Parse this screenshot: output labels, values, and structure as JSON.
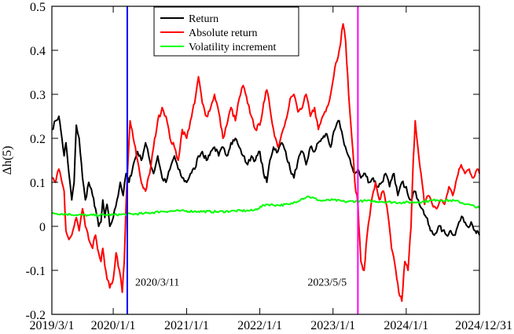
{
  "chart_data": {
    "type": "line",
    "ylabel": "Δh(5)",
    "xlabel": "",
    "title": "",
    "x_ticks": [
      "2019/3/1",
      "2020/1/1",
      "2021/1/1",
      "2022/1/1",
      "2023/1/1",
      "2024/1/1",
      "2024/12/31"
    ],
    "xlim": [
      "2019-03-01",
      "2024-12-31"
    ],
    "ylim": [
      -0.2,
      0.5
    ],
    "y_ticks": [
      "-0.2",
      "-0.1",
      "0",
      "0.1",
      "0.2",
      "0.3",
      "0.4",
      "0.5"
    ],
    "y_tick_values": [
      -0.2,
      -0.1,
      0,
      0.1,
      0.2,
      0.3,
      0.4,
      0.5
    ],
    "legend_position": "top-center",
    "grid": false,
    "series": [
      {
        "name": "Return",
        "color": "#000000",
        "points": [
          [
            "2019-03-01",
            0.22
          ],
          [
            "2019-03-20",
            0.24
          ],
          [
            "2019-04-05",
            0.25
          ],
          [
            "2019-04-20",
            0.2
          ],
          [
            "2019-05-01",
            0.16
          ],
          [
            "2019-05-10",
            0.19
          ],
          [
            "2019-05-25",
            0.12
          ],
          [
            "2019-06-08",
            0.06
          ],
          [
            "2019-06-20",
            0.1
          ],
          [
            "2019-07-01",
            0.23
          ],
          [
            "2019-07-15",
            0.2
          ],
          [
            "2019-08-01",
            0.11
          ],
          [
            "2019-08-15",
            0.06
          ],
          [
            "2019-09-01",
            0.1
          ],
          [
            "2019-09-20",
            0.07
          ],
          [
            "2019-10-05",
            0.04
          ],
          [
            "2019-10-20",
            0.0
          ],
          [
            "2019-11-01",
            0.01
          ],
          [
            "2019-11-10",
            0.06
          ],
          [
            "2019-11-20",
            0.02
          ],
          [
            "2019-12-01",
            0.05
          ],
          [
            "2019-12-15",
            0.0
          ],
          [
            "2020-01-01",
            0.02
          ],
          [
            "2020-01-20",
            0.06
          ],
          [
            "2020-02-05",
            0.1
          ],
          [
            "2020-02-20",
            0.07
          ],
          [
            "2020-03-05",
            0.12
          ],
          [
            "2020-03-20",
            0.1
          ],
          [
            "2020-04-10",
            0.14
          ],
          [
            "2020-05-01",
            0.17
          ],
          [
            "2020-05-20",
            0.15
          ],
          [
            "2020-06-10",
            0.19
          ],
          [
            "2020-07-01",
            0.15
          ],
          [
            "2020-07-20",
            0.12
          ],
          [
            "2020-08-10",
            0.16
          ],
          [
            "2020-09-01",
            0.11
          ],
          [
            "2020-09-20",
            0.1
          ],
          [
            "2020-10-10",
            0.13
          ],
          [
            "2020-11-01",
            0.16
          ],
          [
            "2020-11-20",
            0.13
          ],
          [
            "2020-12-10",
            0.11
          ],
          [
            "2021-01-01",
            0.1
          ],
          [
            "2021-01-20",
            0.12
          ],
          [
            "2021-02-10",
            0.13
          ],
          [
            "2021-03-01",
            0.16
          ],
          [
            "2021-03-20",
            0.17
          ],
          [
            "2021-04-10",
            0.15
          ],
          [
            "2021-05-01",
            0.17
          ],
          [
            "2021-05-20",
            0.18
          ],
          [
            "2021-06-10",
            0.16
          ],
          [
            "2021-07-01",
            0.18
          ],
          [
            "2021-07-20",
            0.16
          ],
          [
            "2021-08-10",
            0.19
          ],
          [
            "2021-09-01",
            0.2
          ],
          [
            "2021-09-20",
            0.18
          ],
          [
            "2021-10-10",
            0.16
          ],
          [
            "2021-11-01",
            0.14
          ],
          [
            "2021-11-20",
            0.16
          ],
          [
            "2021-12-10",
            0.15
          ],
          [
            "2022-01-01",
            0.17
          ],
          [
            "2022-01-20",
            0.12
          ],
          [
            "2022-02-05",
            0.1
          ],
          [
            "2022-02-20",
            0.15
          ],
          [
            "2022-03-10",
            0.18
          ],
          [
            "2022-04-01",
            0.17
          ],
          [
            "2022-04-20",
            0.19
          ],
          [
            "2022-05-10",
            0.17
          ],
          [
            "2022-06-01",
            0.13
          ],
          [
            "2022-06-20",
            0.11
          ],
          [
            "2022-07-10",
            0.15
          ],
          [
            "2022-08-01",
            0.17
          ],
          [
            "2022-08-20",
            0.14
          ],
          [
            "2022-09-10",
            0.18
          ],
          [
            "2022-10-01",
            0.17
          ],
          [
            "2022-10-20",
            0.19
          ],
          [
            "2022-11-10",
            0.2
          ],
          [
            "2022-12-01",
            0.21
          ],
          [
            "2022-12-20",
            0.18
          ],
          [
            "2023-01-10",
            0.22
          ],
          [
            "2023-02-01",
            0.24
          ],
          [
            "2023-02-20",
            0.2
          ],
          [
            "2023-03-10",
            0.17
          ],
          [
            "2023-04-01",
            0.14
          ],
          [
            "2023-04-20",
            0.12
          ],
          [
            "2023-05-05",
            0.13
          ],
          [
            "2023-05-20",
            0.11
          ],
          [
            "2023-06-10",
            0.12
          ],
          [
            "2023-07-01",
            0.1
          ],
          [
            "2023-07-20",
            0.11
          ],
          [
            "2023-08-10",
            0.09
          ],
          [
            "2023-09-01",
            0.1
          ],
          [
            "2023-09-20",
            0.12
          ],
          [
            "2023-10-10",
            0.09
          ],
          [
            "2023-11-01",
            0.12
          ],
          [
            "2023-11-20",
            0.07
          ],
          [
            "2023-12-10",
            0.1
          ],
          [
            "2024-01-01",
            0.09
          ],
          [
            "2024-01-20",
            0.06
          ],
          [
            "2024-02-10",
            0.08
          ],
          [
            "2024-03-01",
            0.06
          ],
          [
            "2024-03-20",
            0.04
          ],
          [
            "2024-04-10",
            0.02
          ],
          [
            "2024-05-01",
            -0.01
          ],
          [
            "2024-05-20",
            -0.02
          ],
          [
            "2024-06-10",
            0.0
          ],
          [
            "2024-07-01",
            -0.01
          ],
          [
            "2024-07-20",
            -0.02
          ],
          [
            "2024-08-10",
            -0.01
          ],
          [
            "2024-09-01",
            -0.02
          ],
          [
            "2024-09-20",
            0.01
          ],
          [
            "2024-10-10",
            0.02
          ],
          [
            "2024-11-01",
            0.0
          ],
          [
            "2024-11-20",
            0.01
          ],
          [
            "2024-12-10",
            -0.01
          ],
          [
            "2024-12-31",
            -0.02
          ]
        ]
      },
      {
        "name": "Absolute return",
        "color": "#ff0000",
        "points": [
          [
            "2019-03-01",
            0.11
          ],
          [
            "2019-03-20",
            0.1
          ],
          [
            "2019-04-05",
            0.13
          ],
          [
            "2019-04-20",
            0.1
          ],
          [
            "2019-05-01",
            0.08
          ],
          [
            "2019-05-10",
            -0.01
          ],
          [
            "2019-05-25",
            -0.03
          ],
          [
            "2019-06-08",
            -0.02
          ],
          [
            "2019-06-20",
            0.0
          ],
          [
            "2019-07-01",
            0.02
          ],
          [
            "2019-07-15",
            -0.01
          ],
          [
            "2019-08-01",
            0.04
          ],
          [
            "2019-08-15",
            0.0
          ],
          [
            "2019-09-01",
            -0.03
          ],
          [
            "2019-09-20",
            -0.05
          ],
          [
            "2019-10-05",
            -0.02
          ],
          [
            "2019-10-20",
            -0.06
          ],
          [
            "2019-11-01",
            -0.08
          ],
          [
            "2019-11-10",
            -0.05
          ],
          [
            "2019-11-20",
            -0.09
          ],
          [
            "2019-12-01",
            -0.12
          ],
          [
            "2019-12-15",
            -0.14
          ],
          [
            "2020-01-01",
            -0.12
          ],
          [
            "2020-01-15",
            -0.06
          ],
          [
            "2020-02-01",
            -0.1
          ],
          [
            "2020-02-15",
            -0.15
          ],
          [
            "2020-02-25",
            -0.08
          ],
          [
            "2020-03-05",
            0.05
          ],
          [
            "2020-03-15",
            0.15
          ],
          [
            "2020-03-25",
            0.24
          ],
          [
            "2020-04-10",
            0.2
          ],
          [
            "2020-05-01",
            0.15
          ],
          [
            "2020-05-20",
            0.1
          ],
          [
            "2020-06-10",
            0.08
          ],
          [
            "2020-07-01",
            0.12
          ],
          [
            "2020-07-20",
            0.18
          ],
          [
            "2020-08-10",
            0.24
          ],
          [
            "2020-09-01",
            0.27
          ],
          [
            "2020-09-20",
            0.25
          ],
          [
            "2020-10-10",
            0.2
          ],
          [
            "2020-11-01",
            0.18
          ],
          [
            "2020-11-20",
            0.15
          ],
          [
            "2020-12-10",
            0.22
          ],
          [
            "2021-01-01",
            0.2
          ],
          [
            "2021-01-20",
            0.24
          ],
          [
            "2021-02-10",
            0.28
          ],
          [
            "2021-03-01",
            0.34
          ],
          [
            "2021-03-20",
            0.28
          ],
          [
            "2021-04-10",
            0.25
          ],
          [
            "2021-05-01",
            0.27
          ],
          [
            "2021-05-20",
            0.3
          ],
          [
            "2021-06-10",
            0.26
          ],
          [
            "2021-07-01",
            0.2
          ],
          [
            "2021-07-20",
            0.23
          ],
          [
            "2021-08-10",
            0.27
          ],
          [
            "2021-09-01",
            0.24
          ],
          [
            "2021-09-20",
            0.29
          ],
          [
            "2021-10-10",
            0.32
          ],
          [
            "2021-11-01",
            0.28
          ],
          [
            "2021-11-20",
            0.25
          ],
          [
            "2021-12-10",
            0.22
          ],
          [
            "2022-01-01",
            0.23
          ],
          [
            "2022-01-20",
            0.28
          ],
          [
            "2022-02-05",
            0.31
          ],
          [
            "2022-02-20",
            0.27
          ],
          [
            "2022-03-10",
            0.22
          ],
          [
            "2022-04-01",
            0.18
          ],
          [
            "2022-04-20",
            0.21
          ],
          [
            "2022-05-10",
            0.24
          ],
          [
            "2022-06-01",
            0.29
          ],
          [
            "2022-06-20",
            0.3
          ],
          [
            "2022-07-10",
            0.26
          ],
          [
            "2022-08-01",
            0.27
          ],
          [
            "2022-08-20",
            0.3
          ],
          [
            "2022-09-10",
            0.25
          ],
          [
            "2022-10-01",
            0.27
          ],
          [
            "2022-10-20",
            0.22
          ],
          [
            "2022-11-10",
            0.25
          ],
          [
            "2022-12-01",
            0.27
          ],
          [
            "2022-12-20",
            0.3
          ],
          [
            "2023-01-10",
            0.36
          ],
          [
            "2023-02-01",
            0.4
          ],
          [
            "2023-02-20",
            0.46
          ],
          [
            "2023-03-05",
            0.42
          ],
          [
            "2023-03-20",
            0.3
          ],
          [
            "2023-04-05",
            0.2
          ],
          [
            "2023-04-20",
            0.1
          ],
          [
            "2023-05-05",
            0.05
          ],
          [
            "2023-05-20",
            -0.08
          ],
          [
            "2023-06-05",
            -0.1
          ],
          [
            "2023-06-20",
            -0.02
          ],
          [
            "2023-07-10",
            0.05
          ],
          [
            "2023-08-01",
            0.1
          ],
          [
            "2023-08-20",
            0.06
          ],
          [
            "2023-09-10",
            0.08
          ],
          [
            "2023-10-01",
            0.03
          ],
          [
            "2023-10-20",
            -0.05
          ],
          [
            "2023-11-10",
            -0.1
          ],
          [
            "2023-11-25",
            -0.15
          ],
          [
            "2023-12-10",
            -0.17
          ],
          [
            "2023-12-25",
            -0.08
          ],
          [
            "2024-01-10",
            -0.1
          ],
          [
            "2024-01-25",
            0.0
          ],
          [
            "2024-02-05",
            0.15
          ],
          [
            "2024-02-15",
            0.24
          ],
          [
            "2024-02-28",
            0.18
          ],
          [
            "2024-03-15",
            0.12
          ],
          [
            "2024-04-01",
            0.05
          ],
          [
            "2024-04-20",
            0.07
          ],
          [
            "2024-05-10",
            0.05
          ],
          [
            "2024-06-01",
            0.04
          ],
          [
            "2024-06-20",
            0.06
          ],
          [
            "2024-07-10",
            0.05
          ],
          [
            "2024-08-01",
            0.09
          ],
          [
            "2024-08-20",
            0.07
          ],
          [
            "2024-09-10",
            0.11
          ],
          [
            "2024-10-01",
            0.14
          ],
          [
            "2024-10-20",
            0.12
          ],
          [
            "2024-11-10",
            0.13
          ],
          [
            "2024-12-01",
            0.11
          ],
          [
            "2024-12-20",
            0.13
          ],
          [
            "2024-12-31",
            0.12
          ]
        ]
      },
      {
        "name": "Volatility increment",
        "color": "#00ff00",
        "points": [
          [
            "2019-03-01",
            0.03
          ],
          [
            "2019-06-01",
            0.027
          ],
          [
            "2019-09-01",
            0.025
          ],
          [
            "2019-12-01",
            0.026
          ],
          [
            "2020-03-01",
            0.027
          ],
          [
            "2020-06-01",
            0.029
          ],
          [
            "2020-09-01",
            0.034
          ],
          [
            "2020-12-01",
            0.035
          ],
          [
            "2021-03-01",
            0.034
          ],
          [
            "2021-06-01",
            0.033
          ],
          [
            "2021-09-01",
            0.035
          ],
          [
            "2021-12-01",
            0.036
          ],
          [
            "2022-02-01",
            0.05
          ],
          [
            "2022-04-01",
            0.048
          ],
          [
            "2022-06-01",
            0.05
          ],
          [
            "2022-08-01",
            0.063
          ],
          [
            "2022-09-01",
            0.068
          ],
          [
            "2022-11-01",
            0.058
          ],
          [
            "2023-01-01",
            0.06
          ],
          [
            "2023-03-01",
            0.056
          ],
          [
            "2023-06-01",
            0.058
          ],
          [
            "2023-09-01",
            0.056
          ],
          [
            "2023-12-01",
            0.054
          ],
          [
            "2024-03-01",
            0.055
          ],
          [
            "2024-06-01",
            0.06
          ],
          [
            "2024-09-01",
            0.058
          ],
          [
            "2024-11-01",
            0.05
          ],
          [
            "2024-12-31",
            0.042
          ]
        ]
      }
    ],
    "events": [
      {
        "date": "2020-03-11",
        "label": "2020/3/11",
        "color": "#0000ff"
      },
      {
        "date": "2023-05-05",
        "label": "2023/5/5",
        "color": "#ff00ff"
      }
    ]
  }
}
